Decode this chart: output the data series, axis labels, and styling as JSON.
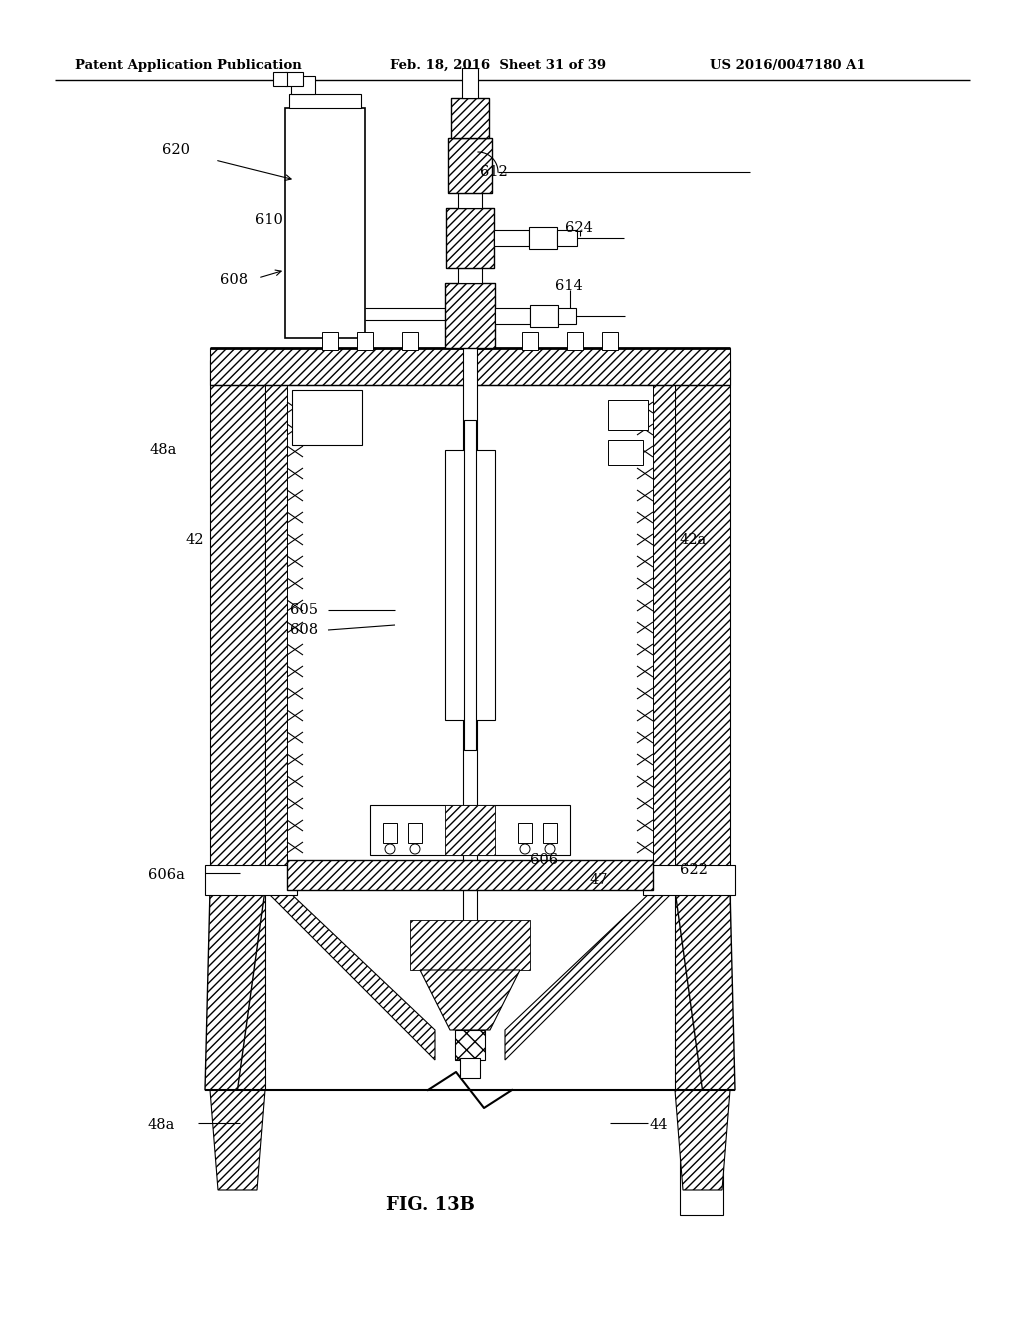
{
  "bg_color": "#ffffff",
  "header_left": "Patent Application Publication",
  "header_mid": "Feb. 18, 2016  Sheet 31 of 39",
  "header_right": "US 2016/0047180 A1",
  "fig_label": "FIG. 13B",
  "line_color": "#000000"
}
